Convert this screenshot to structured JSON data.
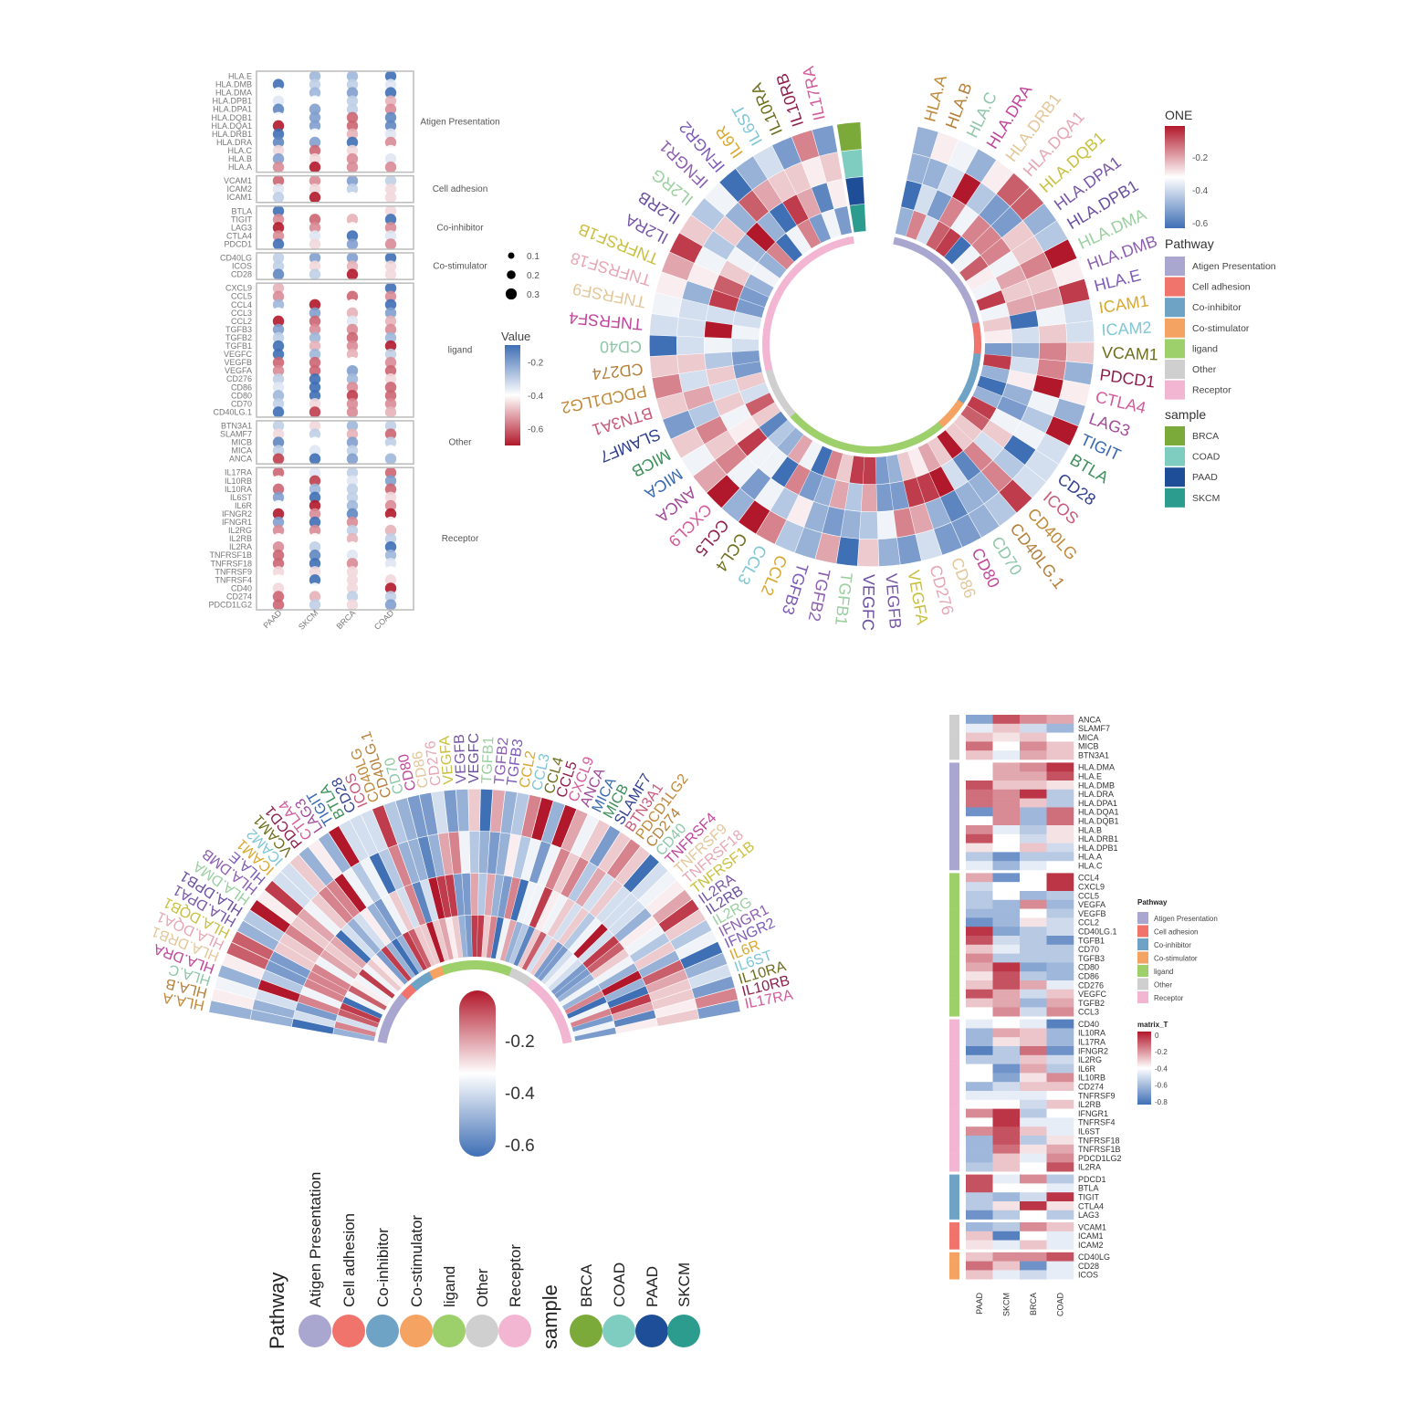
{
  "samples": [
    "PAAD",
    "SKCM",
    "BRCA",
    "COAD"
  ],
  "pathways": [
    {
      "name": "Atigen Presentation",
      "color": "#A9A6D0"
    },
    {
      "name": "Cell adhesion",
      "color": "#F0746B"
    },
    {
      "name": "Co-inhibitor",
      "color": "#6FA3C6"
    },
    {
      "name": "Co-stimulator",
      "color": "#F5A362"
    },
    {
      "name": "ligand",
      "color": "#9DD06A"
    },
    {
      "name": "Other",
      "color": "#CFCFCF"
    },
    {
      "name": "Receptor",
      "color": "#F3B6D2"
    }
  ],
  "sample_legend": [
    {
      "name": "BRCA",
      "color": "#7BAA3A"
    },
    {
      "name": "COAD",
      "color": "#7ECDC0"
    },
    {
      "name": "PAAD",
      "color": "#1F4E99"
    },
    {
      "name": "SKCM",
      "color": "#2B9C8E"
    }
  ],
  "colors": {
    "low": "#3F6FB5",
    "mid": "#FFFFFF",
    "high": "#B2182B"
  },
  "label_palette": [
    "#C08A3A",
    "#B5803C",
    "#8FC7A8",
    "#C2479B",
    "#E3C79A",
    "#E6A7B5",
    "#C9C040",
    "#7A58A8",
    "#6B4FA0",
    "#9BCFA0",
    "#8E5FB0",
    "#7D5CB8",
    "#D9A830",
    "#7FC6D6",
    "#6E6E1E",
    "#8E1F4A",
    "#D45A9A",
    "#A14B9A",
    "#3A69B0",
    "#3D8F5A",
    "#2F3F8F",
    "#C95A7A"
  ],
  "genes": [
    {
      "name": "HLA.A",
      "pathway": "Atigen Presentation",
      "values": [
        -0.55,
        -0.7,
        -0.55,
        -0.55
      ]
    },
    {
      "name": "HLA.B",
      "pathway": "Atigen Presentation",
      "values": [
        -0.2,
        -0.45,
        -0.55,
        -0.35
      ]
    },
    {
      "name": "HLA.C",
      "pathway": "Atigen Presentation",
      "values": [
        -0.45,
        -0.6,
        -0.45,
        -0.4
      ]
    },
    {
      "name": "HLA.DRA",
      "pathway": "Atigen Presentation",
      "values": [
        -0.15,
        -0.2,
        -0.05,
        -0.55
      ]
    },
    {
      "name": "HLA.DRB1",
      "pathway": "Atigen Presentation",
      "values": [
        -0.1,
        -0.4,
        -0.5,
        -0.35
      ]
    },
    {
      "name": "HLA.DQA1",
      "pathway": "Atigen Presentation",
      "values": [
        -0.7,
        -0.2,
        -0.6,
        -0.15
      ]
    },
    {
      "name": "HLA.DQB1",
      "pathway": "Atigen Presentation",
      "values": [
        -0.4,
        -0.2,
        -0.6,
        -0.15
      ]
    },
    {
      "name": "HLA.DPA1",
      "pathway": "Atigen Presentation",
      "values": [
        -0.15,
        -0.2,
        -0.3,
        -0.55
      ]
    },
    {
      "name": "HLA.DPB1",
      "pathway": "Atigen Presentation",
      "values": [
        -0.35,
        -0.4,
        -0.3,
        -0.5
      ]
    },
    {
      "name": "HLA.DMA",
      "pathway": "Atigen Presentation",
      "values": [
        -0.4,
        -0.25,
        -0.2,
        -0.05
      ]
    },
    {
      "name": "HLA.DMB",
      "pathway": "Atigen Presentation",
      "values": [
        -0.1,
        -0.3,
        -0.3,
        -0.35
      ]
    },
    {
      "name": "HLA.E",
      "pathway": "Atigen Presentation",
      "values": [
        -0.4,
        -0.25,
        -0.25,
        -0.1
      ]
    },
    {
      "name": "ICAM1",
      "pathway": "Cell adhesion",
      "values": [
        -0.3,
        -0.75,
        -0.4,
        -0.45
      ]
    },
    {
      "name": "ICAM2",
      "pathway": "Cell adhesion",
      "values": [
        -0.35,
        -0.45,
        -0.3,
        -0.45
      ]
    },
    {
      "name": "VCAM1",
      "pathway": "Cell adhesion",
      "values": [
        -0.6,
        -0.55,
        -0.2,
        -0.3
      ]
    },
    {
      "name": "PDCD1",
      "pathway": "Co-inhibitor",
      "values": [
        -0.1,
        -0.45,
        -0.2,
        -0.55
      ]
    },
    {
      "name": "CTLA4",
      "pathway": "Co-inhibitor",
      "values": [
        -0.55,
        -0.35,
        -0.05,
        -0.35
      ]
    },
    {
      "name": "LAG3",
      "pathway": "Co-inhibitor",
      "values": [
        -0.7,
        -0.55,
        -0.4,
        -0.55
      ]
    },
    {
      "name": "TIGIT",
      "pathway": "Co-inhibitor",
      "values": [
        -0.55,
        -0.6,
        -0.5,
        -0.05
      ]
    },
    {
      "name": "BTLA",
      "pathway": "Co-inhibitor",
      "values": [
        -0.1,
        -0.4,
        -0.4,
        -0.45
      ]
    },
    {
      "name": "CD28",
      "pathway": "Co-stimulator",
      "values": [
        -0.15,
        -0.3,
        -0.7,
        -0.45
      ]
    },
    {
      "name": "ICOS",
      "pathway": "Co-stimulator",
      "values": [
        -0.3,
        -0.45,
        -0.5,
        -0.45
      ]
    },
    {
      "name": "CD40LG",
      "pathway": "Co-stimulator",
      "values": [
        -0.3,
        -0.2,
        -0.2,
        -0.1
      ]
    },
    {
      "name": "CD40LG.1",
      "pathway": "ligand",
      "values": [
        -0.05,
        -0.65,
        -0.55,
        -0.5
      ]
    },
    {
      "name": "CD70",
      "pathway": "ligand",
      "values": [
        -0.3,
        -0.45,
        -0.55,
        -0.55
      ]
    },
    {
      "name": "CD80",
      "pathway": "ligand",
      "values": [
        -0.25,
        -0.05,
        -0.65,
        -0.6
      ]
    },
    {
      "name": "CD86",
      "pathway": "ligand",
      "values": [
        -0.35,
        -0.1,
        -0.55,
        -0.6
      ]
    },
    {
      "name": "CD276",
      "pathway": "ligand",
      "values": [
        -0.3,
        -0.1,
        -0.25,
        -0.45
      ]
    },
    {
      "name": "VEGFA",
      "pathway": "ligand",
      "values": [
        -0.55,
        -0.6,
        -0.2,
        -0.6
      ]
    },
    {
      "name": "VEGFB",
      "pathway": "ligand",
      "values": [
        -0.6,
        -0.6,
        -0.4,
        -0.55
      ]
    },
    {
      "name": "VEGFC",
      "pathway": "ligand",
      "values": [
        -0.1,
        -0.25,
        -0.5,
        -0.3
      ]
    },
    {
      "name": "TGFB1",
      "pathway": "ligand",
      "values": [
        -0.1,
        -0.5,
        -0.55,
        -0.7
      ]
    },
    {
      "name": "TGFB2",
      "pathway": "ligand",
      "values": [
        -0.3,
        -0.25,
        -0.6,
        -0.25
      ]
    },
    {
      "name": "TGFB3",
      "pathway": "ligand",
      "values": [
        -0.2,
        -0.55,
        -0.55,
        -0.55
      ]
    },
    {
      "name": "CCL2",
      "pathway": "ligand",
      "values": [
        -0.7,
        -0.6,
        -0.35,
        -0.5
      ]
    },
    {
      "name": "CCL3",
      "pathway": "ligand",
      "values": [
        -0.4,
        -0.2,
        -0.5,
        -0.2
      ]
    },
    {
      "name": "CCL4",
      "pathway": "ligand",
      "values": [
        -0.25,
        -0.7,
        -0.4,
        -0.05
      ]
    },
    {
      "name": "CCL5",
      "pathway": "ligand",
      "values": [
        -0.55,
        -0.4,
        -0.6,
        -0.55
      ]
    },
    {
      "name": "CXCL9",
      "pathway": "ligand",
      "values": [
        -0.5,
        -0.4,
        -0.4,
        -0.05
      ]
    },
    {
      "name": "ANCA",
      "pathway": "Other",
      "values": [
        -0.65,
        -0.1,
        -0.2,
        -0.25
      ]
    },
    {
      "name": "MICA",
      "pathway": "Other",
      "values": [
        -0.3,
        -0.35,
        -0.3,
        -0.4
      ]
    },
    {
      "name": "MICB",
      "pathway": "Other",
      "values": [
        -0.15,
        -0.4,
        -0.2,
        -0.3
      ]
    },
    {
      "name": "SLAMF7",
      "pathway": "Other",
      "values": [
        -0.45,
        -0.3,
        -0.5,
        -0.6
      ]
    },
    {
      "name": "BTN3A1",
      "pathway": "Other",
      "values": [
        -0.3,
        -0.45,
        -0.25,
        -0.3
      ]
    },
    {
      "name": "PDCD1LG2",
      "pathway": "Receptor",
      "values": [
        -0.6,
        -0.3,
        -0.45,
        -0.2
      ]
    },
    {
      "name": "CD274",
      "pathway": "Receptor",
      "values": [
        -0.6,
        -0.5,
        -0.3,
        -0.3
      ]
    },
    {
      "name": "CD40",
      "pathway": "Receptor",
      "values": [
        -0.45,
        -0.4,
        -0.45,
        -0.75
      ]
    },
    {
      "name": "TNFRSF4",
      "pathway": "Receptor",
      "values": [
        -0.4,
        -0.05,
        -0.45,
        -0.45
      ]
    },
    {
      "name": "TNFRSF9",
      "pathway": "Receptor",
      "values": [
        -0.45,
        -0.45,
        -0.45,
        -0.4
      ]
    },
    {
      "name": "TNFRSF18",
      "pathway": "Receptor",
      "values": [
        -0.6,
        -0.1,
        -0.55,
        -0.35
      ]
    },
    {
      "name": "TNFRSF1B",
      "pathway": "Receptor",
      "values": [
        -0.6,
        -0.15,
        -0.35,
        -0.25
      ]
    },
    {
      "name": "IL2RA",
      "pathway": "Receptor",
      "values": [
        -0.55,
        -0.3,
        -0.4,
        -0.1
      ]
    },
    {
      "name": "IL2RB",
      "pathway": "Receptor",
      "values": [
        -0.4,
        -0.4,
        -0.5,
        -0.3
      ]
    },
    {
      "name": "IL2RG",
      "pathway": "Receptor",
      "values": [
        -0.55,
        -0.55,
        -0.3,
        -0.5
      ]
    },
    {
      "name": "IFNGR1",
      "pathway": "Receptor",
      "values": [
        -0.2,
        -0.05,
        -0.55,
        -0.4
      ]
    },
    {
      "name": "IFNGR2",
      "pathway": "Receptor",
      "values": [
        -0.75,
        -0.55,
        -0.15,
        -0.7
      ]
    },
    {
      "name": "IL6R",
      "pathway": "Receptor",
      "values": [
        -0.4,
        -0.7,
        -0.25,
        -0.55
      ]
    },
    {
      "name": "IL6ST",
      "pathway": "Receptor",
      "values": [
        -0.2,
        -0.1,
        -0.3,
        -0.45
      ]
    },
    {
      "name": "IL10RA",
      "pathway": "Receptor",
      "values": [
        -0.6,
        -0.25,
        -0.3,
        -0.6
      ]
    },
    {
      "name": "IL10RB",
      "pathway": "Receptor",
      "values": [
        -0.4,
        -0.65,
        -0.35,
        -0.2
      ]
    },
    {
      "name": "IL17RA",
      "pathway": "Receptor",
      "values": [
        -0.6,
        -0.35,
        -0.3,
        -0.6
      ]
    }
  ],
  "chart_data": [
    {
      "type": "scatter",
      "kind": "dot-heatmap",
      "x": [
        "PAAD",
        "SKCM",
        "BRCA",
        "COAD"
      ],
      "legend_title": "Value",
      "color_ticks": [
        -0.2,
        -0.4,
        -0.6
      ],
      "color_range": [
        -0.7,
        -0.1
      ],
      "size_ticks": [
        0.1,
        0.2,
        0.3
      ],
      "grouping": "Pathway"
    },
    {
      "type": "heatmap",
      "kind": "circular",
      "legend_title": "ONE",
      "color_ticks": [
        -0.2,
        -0.4,
        -0.6
      ],
      "color_range": [
        -0.7,
        -0.05
      ],
      "pathway_title": "Pathway",
      "sample_title": "sample"
    },
    {
      "type": "heatmap",
      "kind": "semicircular",
      "color_ticks": [
        -0.2,
        -0.4,
        -0.6
      ],
      "color_range": [
        -0.7,
        -0.05
      ],
      "pathway_title": "Pathway",
      "sample_title": "sample"
    },
    {
      "type": "heatmap",
      "x": [
        "PAAD",
        "SKCM",
        "BRCA",
        "COAD"
      ],
      "legend_title": "matrix_T",
      "pathway_title": "Pathway",
      "color_ticks": [
        0,
        -0.2,
        -0.4,
        -0.6,
        -0.8
      ],
      "color_range": [
        -0.8,
        0
      ],
      "row_order": [
        "ANCA",
        "SLAMF7",
        "MICA",
        "MICB",
        "BTN3A1",
        "HLA.DMA",
        "HLA.E",
        "HLA.DMB",
        "HLA.DRA",
        "HLA.DPA1",
        "HLA.DQA1",
        "HLA.DQB1",
        "HLA.B",
        "HLA.DRB1",
        "HLA.DPB1",
        "HLA.A",
        "HLA.C",
        "CCL4",
        "CXCL9",
        "CCL5",
        "VEGFA",
        "VEGFB",
        "CCL2",
        "CD40LG.1",
        "TGFB1",
        "CD70",
        "TGFB3",
        "CD80",
        "CD86",
        "CD276",
        "VEGFC",
        "TGFB2",
        "CCL3",
        "CD40",
        "IL10RA",
        "IL17RA",
        "IFNGR2",
        "IL2RG",
        "IL6R",
        "IL10RB",
        "CD274",
        "TNFRSF9",
        "IL2RB",
        "IFNGR1",
        "TNFRSF4",
        "IL6ST",
        "TNFRSF18",
        "TNFRSF1B",
        "PDCD1LG2",
        "IL2RA",
        "PDCD1",
        "BTLA",
        "TIGIT",
        "CTLA4",
        "LAG3",
        "VCAM1",
        "ICAM1",
        "ICAM2",
        "CD40LG",
        "CD28",
        "ICOS"
      ]
    }
  ]
}
